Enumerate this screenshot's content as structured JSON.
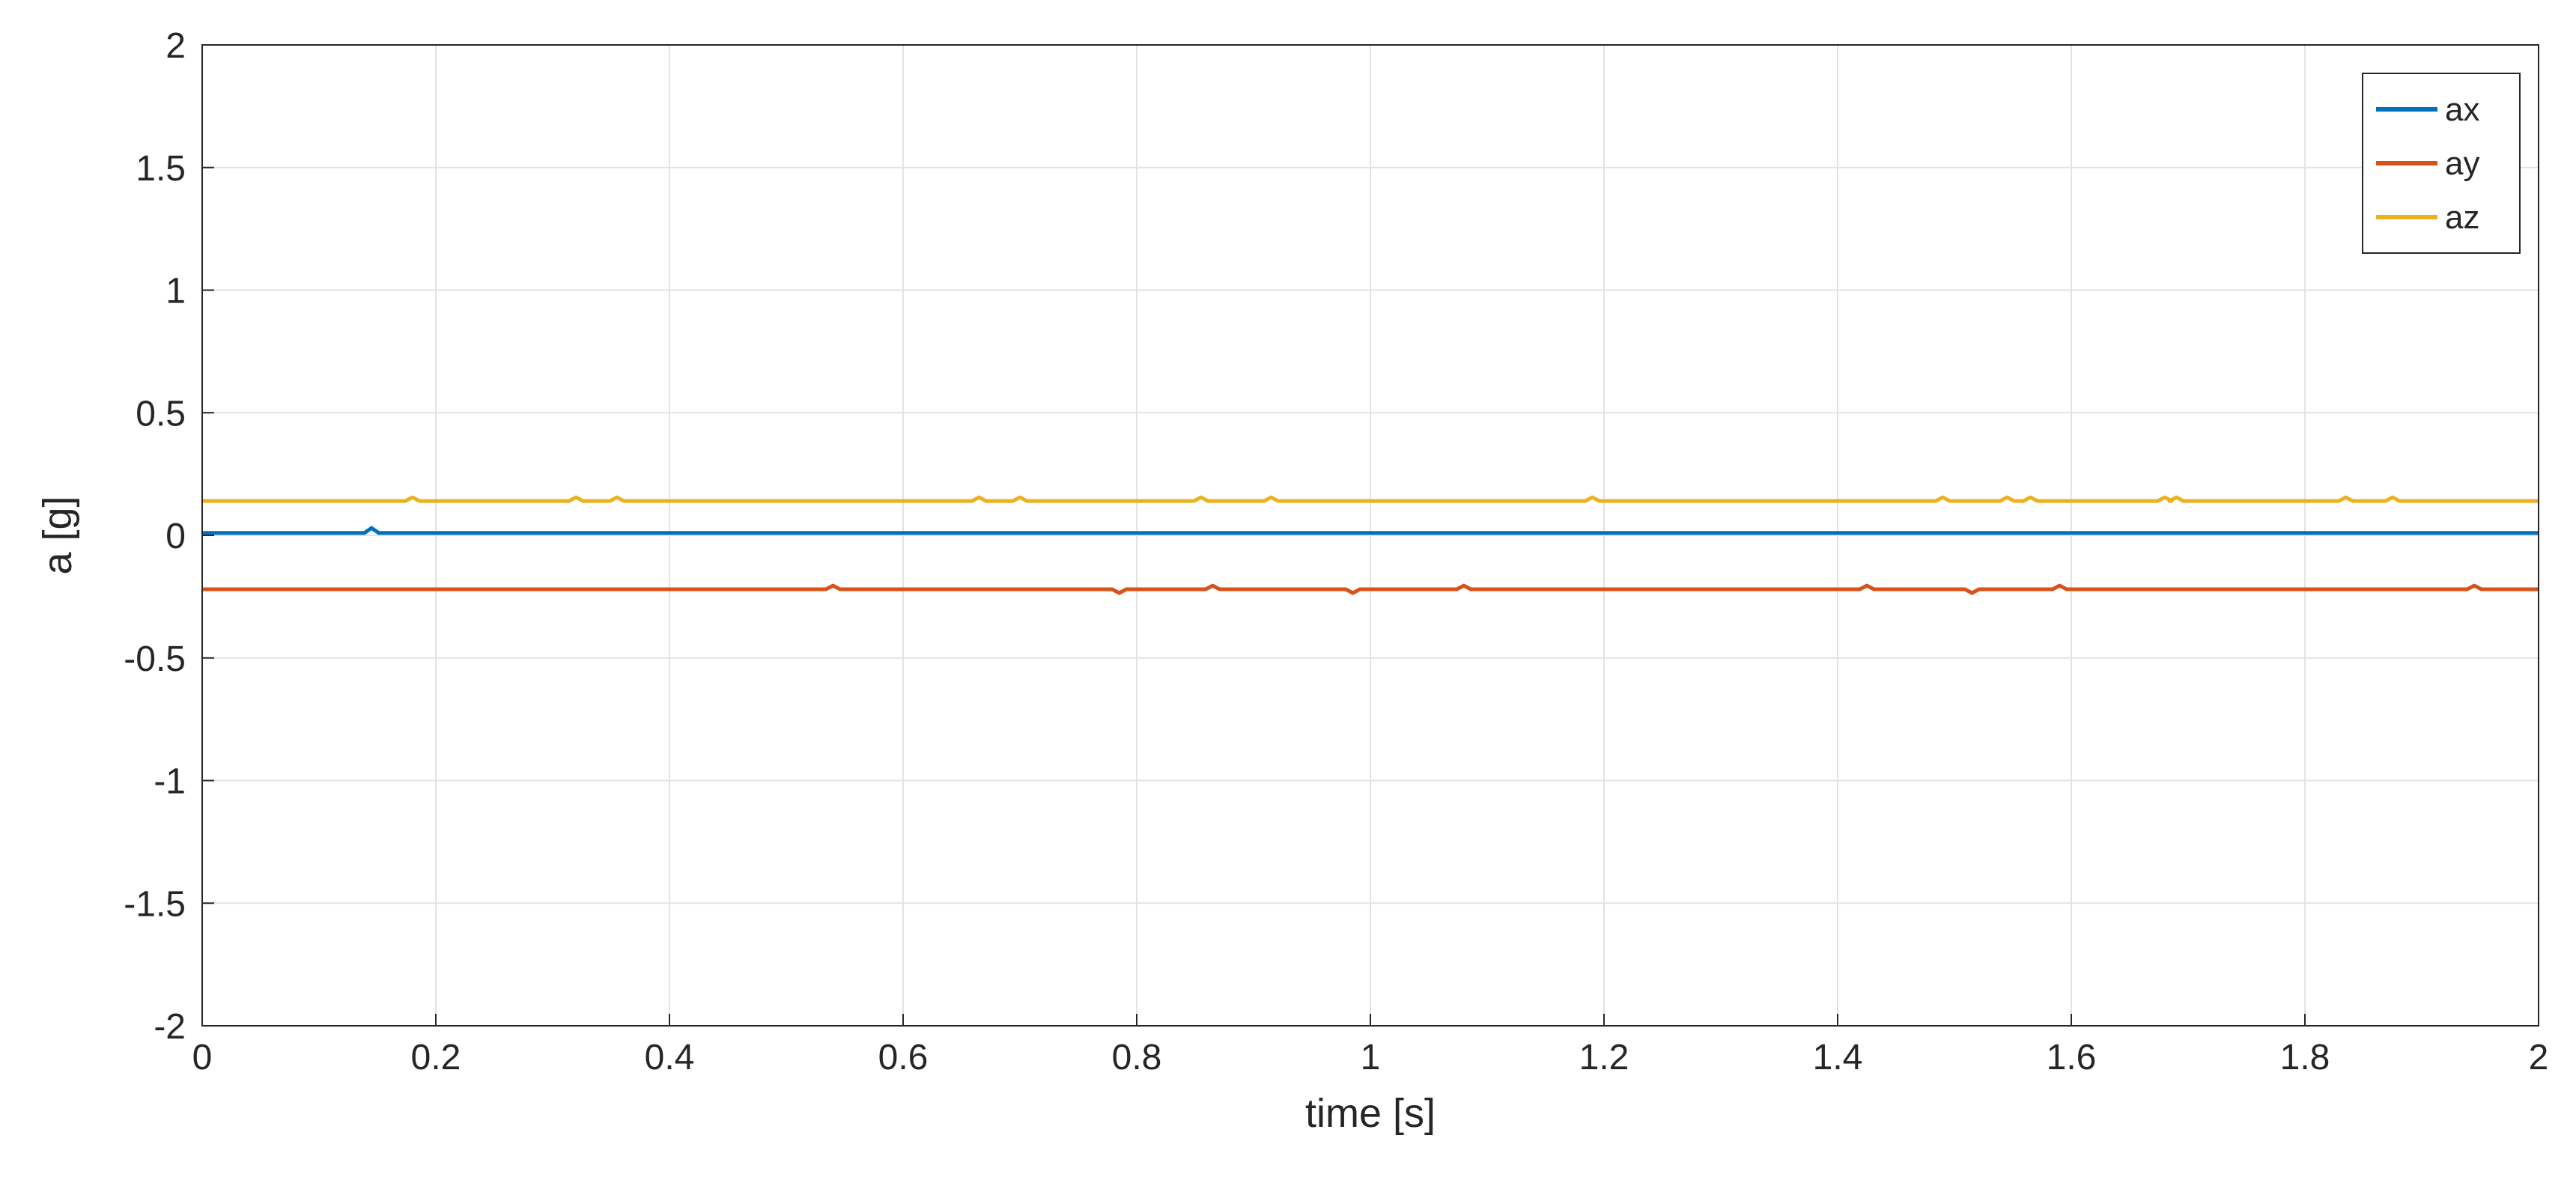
{
  "chart_data": {
    "type": "line",
    "title": "",
    "xlabel": "time [s]",
    "ylabel": "a [g]",
    "xlim": [
      0,
      2
    ],
    "ylim": [
      -2,
      2
    ],
    "xticks": [
      0,
      0.2,
      0.4,
      0.6,
      0.8,
      1,
      1.2,
      1.4,
      1.6,
      1.8,
      2
    ],
    "xtick_labels": [
      "0",
      "0.2",
      "0.4",
      "0.6",
      "0.8",
      "1",
      "1.2",
      "1.4",
      "1.6",
      "1.8",
      "2"
    ],
    "yticks": [
      -2,
      -1.5,
      -1,
      -0.5,
      0,
      0.5,
      1,
      1.5,
      2
    ],
    "ytick_labels": [
      "-2",
      "-1.5",
      "-1",
      "-0.5",
      "0",
      "0.5",
      "1",
      "1.5",
      "2"
    ],
    "grid": true,
    "legend_position": "top-right",
    "series": [
      {
        "name": "ax",
        "color": "#0072BD",
        "baseline": 0.01,
        "spikes": [
          [
            0.145,
            0.03
          ]
        ]
      },
      {
        "name": "ay",
        "color": "#D95319",
        "baseline": -0.22,
        "spikes": [
          [
            0.54,
            -0.205
          ],
          [
            0.785,
            -0.235
          ],
          [
            0.865,
            -0.205
          ],
          [
            0.985,
            -0.235
          ],
          [
            1.08,
            -0.205
          ],
          [
            1.425,
            -0.205
          ],
          [
            1.515,
            -0.235
          ],
          [
            1.59,
            -0.205
          ],
          [
            1.945,
            -0.205
          ]
        ]
      },
      {
        "name": "az",
        "color": "#EDB120",
        "baseline": 0.14,
        "spikes": [
          [
            0.18,
            0.155
          ],
          [
            0.32,
            0.155
          ],
          [
            0.355,
            0.155
          ],
          [
            0.665,
            0.155
          ],
          [
            0.7,
            0.155
          ],
          [
            0.855,
            0.155
          ],
          [
            0.915,
            0.155
          ],
          [
            1.19,
            0.155
          ],
          [
            1.49,
            0.155
          ],
          [
            1.545,
            0.155
          ],
          [
            1.565,
            0.155
          ],
          [
            1.68,
            0.155
          ],
          [
            1.69,
            0.155
          ],
          [
            1.835,
            0.155
          ],
          [
            1.875,
            0.155
          ]
        ]
      }
    ]
  }
}
